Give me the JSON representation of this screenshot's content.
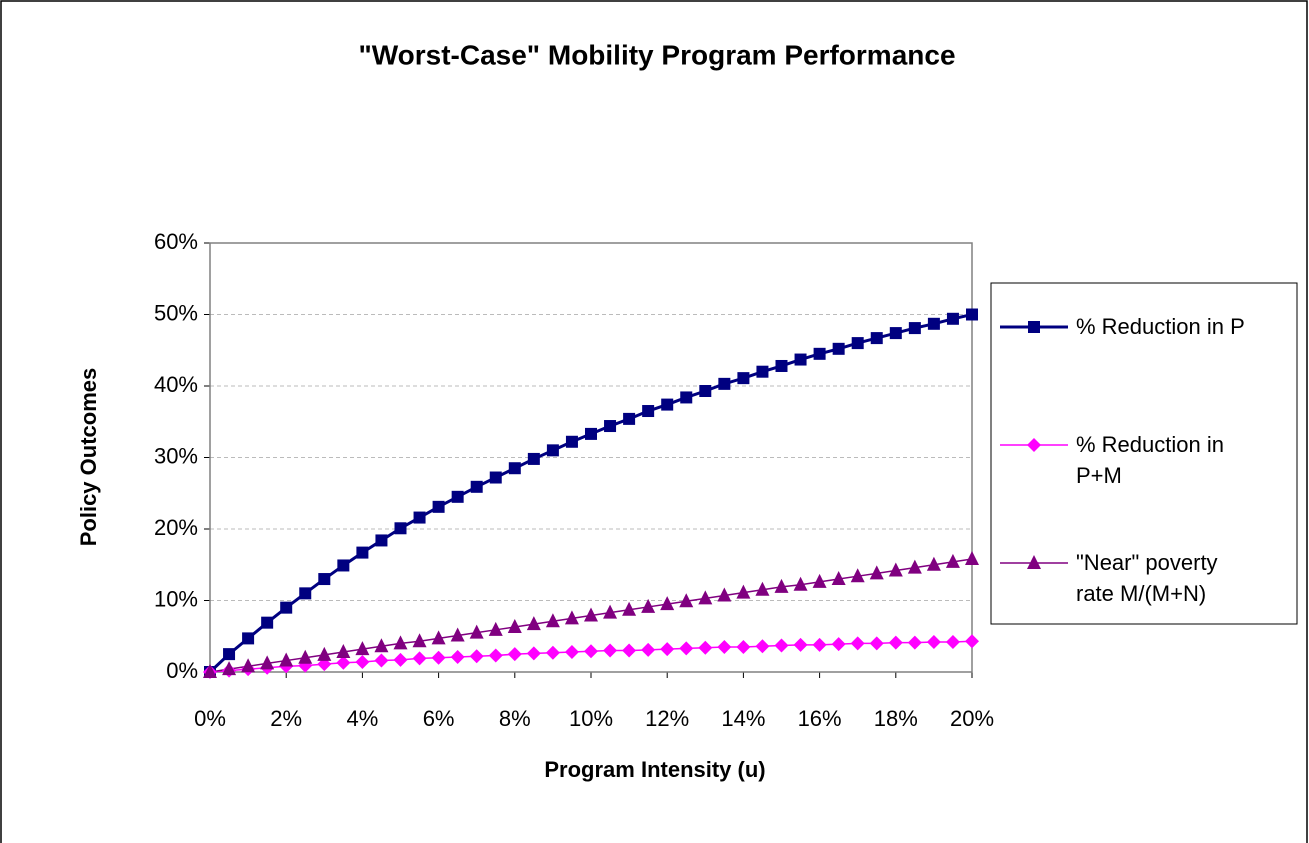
{
  "chart_data": {
    "type": "line",
    "title": "\"Worst-Case\" Mobility Program Performance",
    "x_label": "Program Intensity (u)",
    "y_label": "Policy Outcomes",
    "x": [
      0,
      0.5,
      1,
      1.5,
      2,
      2.5,
      3,
      3.5,
      4,
      4.5,
      5,
      5.5,
      6,
      6.5,
      7,
      7.5,
      8,
      8.5,
      9,
      9.5,
      10,
      10.5,
      11,
      11.5,
      12,
      12.5,
      13,
      13.5,
      14,
      14.5,
      15,
      15.5,
      16,
      16.5,
      17,
      17.5,
      18,
      18.5,
      19,
      19.5,
      20
    ],
    "series": [
      {
        "name": "% Reduction in P",
        "color": "#000080",
        "marker": "square",
        "values": [
          0,
          2.5,
          4.7,
          6.9,
          9.0,
          11.0,
          13.0,
          14.9,
          16.7,
          18.4,
          20.1,
          21.6,
          23.1,
          24.5,
          25.9,
          27.2,
          28.5,
          29.8,
          31.0,
          32.2,
          33.3,
          34.4,
          35.4,
          36.5,
          37.4,
          38.4,
          39.3,
          40.3,
          41.1,
          42.0,
          42.8,
          43.7,
          44.5,
          45.2,
          46.0,
          46.7,
          47.4,
          48.1,
          48.7,
          49.4,
          50.0
        ]
      },
      {
        "name": "% Reduction in P+M",
        "color": "#ff00ff",
        "marker": "diamond",
        "values": [
          0,
          0.2,
          0.4,
          0.6,
          0.8,
          0.9,
          1.1,
          1.3,
          1.4,
          1.6,
          1.7,
          1.9,
          2.0,
          2.1,
          2.2,
          2.3,
          2.5,
          2.6,
          2.7,
          2.8,
          2.9,
          3.0,
          3.0,
          3.1,
          3.2,
          3.3,
          3.4,
          3.5,
          3.5,
          3.6,
          3.7,
          3.8,
          3.8,
          3.9,
          4.0,
          4.0,
          4.1,
          4.1,
          4.2,
          4.2,
          4.3
        ]
      },
      {
        "name": "\"Near\" poverty rate M/(M+N)",
        "color": "#800080",
        "marker": "triangle",
        "values": [
          0,
          0.4,
          0.8,
          1.2,
          1.6,
          2.0,
          2.4,
          2.8,
          3.2,
          3.6,
          4.0,
          4.3,
          4.7,
          5.1,
          5.5,
          5.9,
          6.3,
          6.7,
          7.1,
          7.5,
          7.9,
          8.3,
          8.7,
          9.1,
          9.5,
          9.9,
          10.3,
          10.7,
          11.1,
          11.5,
          11.9,
          12.2,
          12.6,
          13.0,
          13.4,
          13.8,
          14.2,
          14.6,
          15.0,
          15.4,
          15.8
        ]
      }
    ],
    "xlim": [
      0,
      20
    ],
    "xticks": [
      {
        "value": 0,
        "label": "0%"
      },
      {
        "value": 2,
        "label": "2%"
      },
      {
        "value": 4,
        "label": "4%"
      },
      {
        "value": 6,
        "label": "6%"
      },
      {
        "value": 8,
        "label": "8%"
      },
      {
        "value": 10,
        "label": "10%"
      },
      {
        "value": 12,
        "label": "12%"
      },
      {
        "value": 14,
        "label": "14%"
      },
      {
        "value": 16,
        "label": "16%"
      },
      {
        "value": 18,
        "label": "18%"
      },
      {
        "value": 20,
        "label": "20%"
      }
    ],
    "ylim": [
      0,
      60
    ],
    "yticks": [
      {
        "value": 0,
        "label": "0%"
      },
      {
        "value": 10,
        "label": "10%"
      },
      {
        "value": 20,
        "label": "20%"
      },
      {
        "value": 30,
        "label": "30%"
      },
      {
        "value": 40,
        "label": "40%"
      },
      {
        "value": 50,
        "label": "50%"
      },
      {
        "value": 60,
        "label": "60%"
      }
    ],
    "grid": true,
    "legend": "right"
  }
}
